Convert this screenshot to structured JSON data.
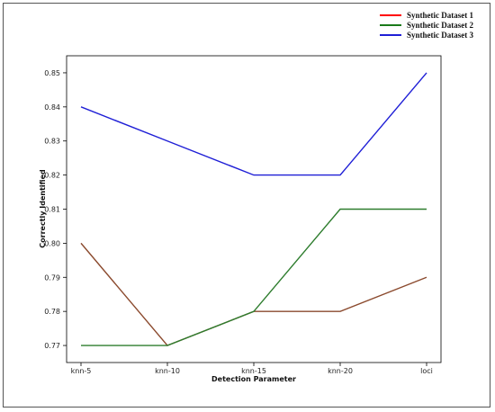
{
  "chart_data": {
    "type": "line",
    "categories": [
      "knn-5",
      "knn-10",
      "knn-15",
      "knn-20",
      "loci"
    ],
    "series": [
      {
        "name": "Synthetic Dataset 1",
        "color": "#ff0000",
        "draw_color": "#8b4a2e",
        "values": [
          0.8,
          0.77,
          0.78,
          0.78,
          0.79
        ]
      },
      {
        "name": "Synthetic Dataset 2",
        "color": "#1a7a1a",
        "draw_color": "#2e7d2e",
        "values": [
          0.77,
          0.77,
          0.78,
          0.81,
          0.81
        ]
      },
      {
        "name": "Synthetic Dataset 3",
        "color": "#1f1fd6",
        "draw_color": "#1f1fd6",
        "values": [
          0.84,
          0.83,
          0.82,
          0.82,
          0.85
        ]
      }
    ],
    "xlabel": "Detection Parameter",
    "ylabel": "Correctly Identified",
    "ylim": [
      0.765,
      0.855
    ],
    "yticks": [
      "0.77",
      "0.78",
      "0.79",
      "0.80",
      "0.81",
      "0.82",
      "0.83",
      "0.84",
      "0.85"
    ],
    "grid": false,
    "legend": "top-right"
  }
}
